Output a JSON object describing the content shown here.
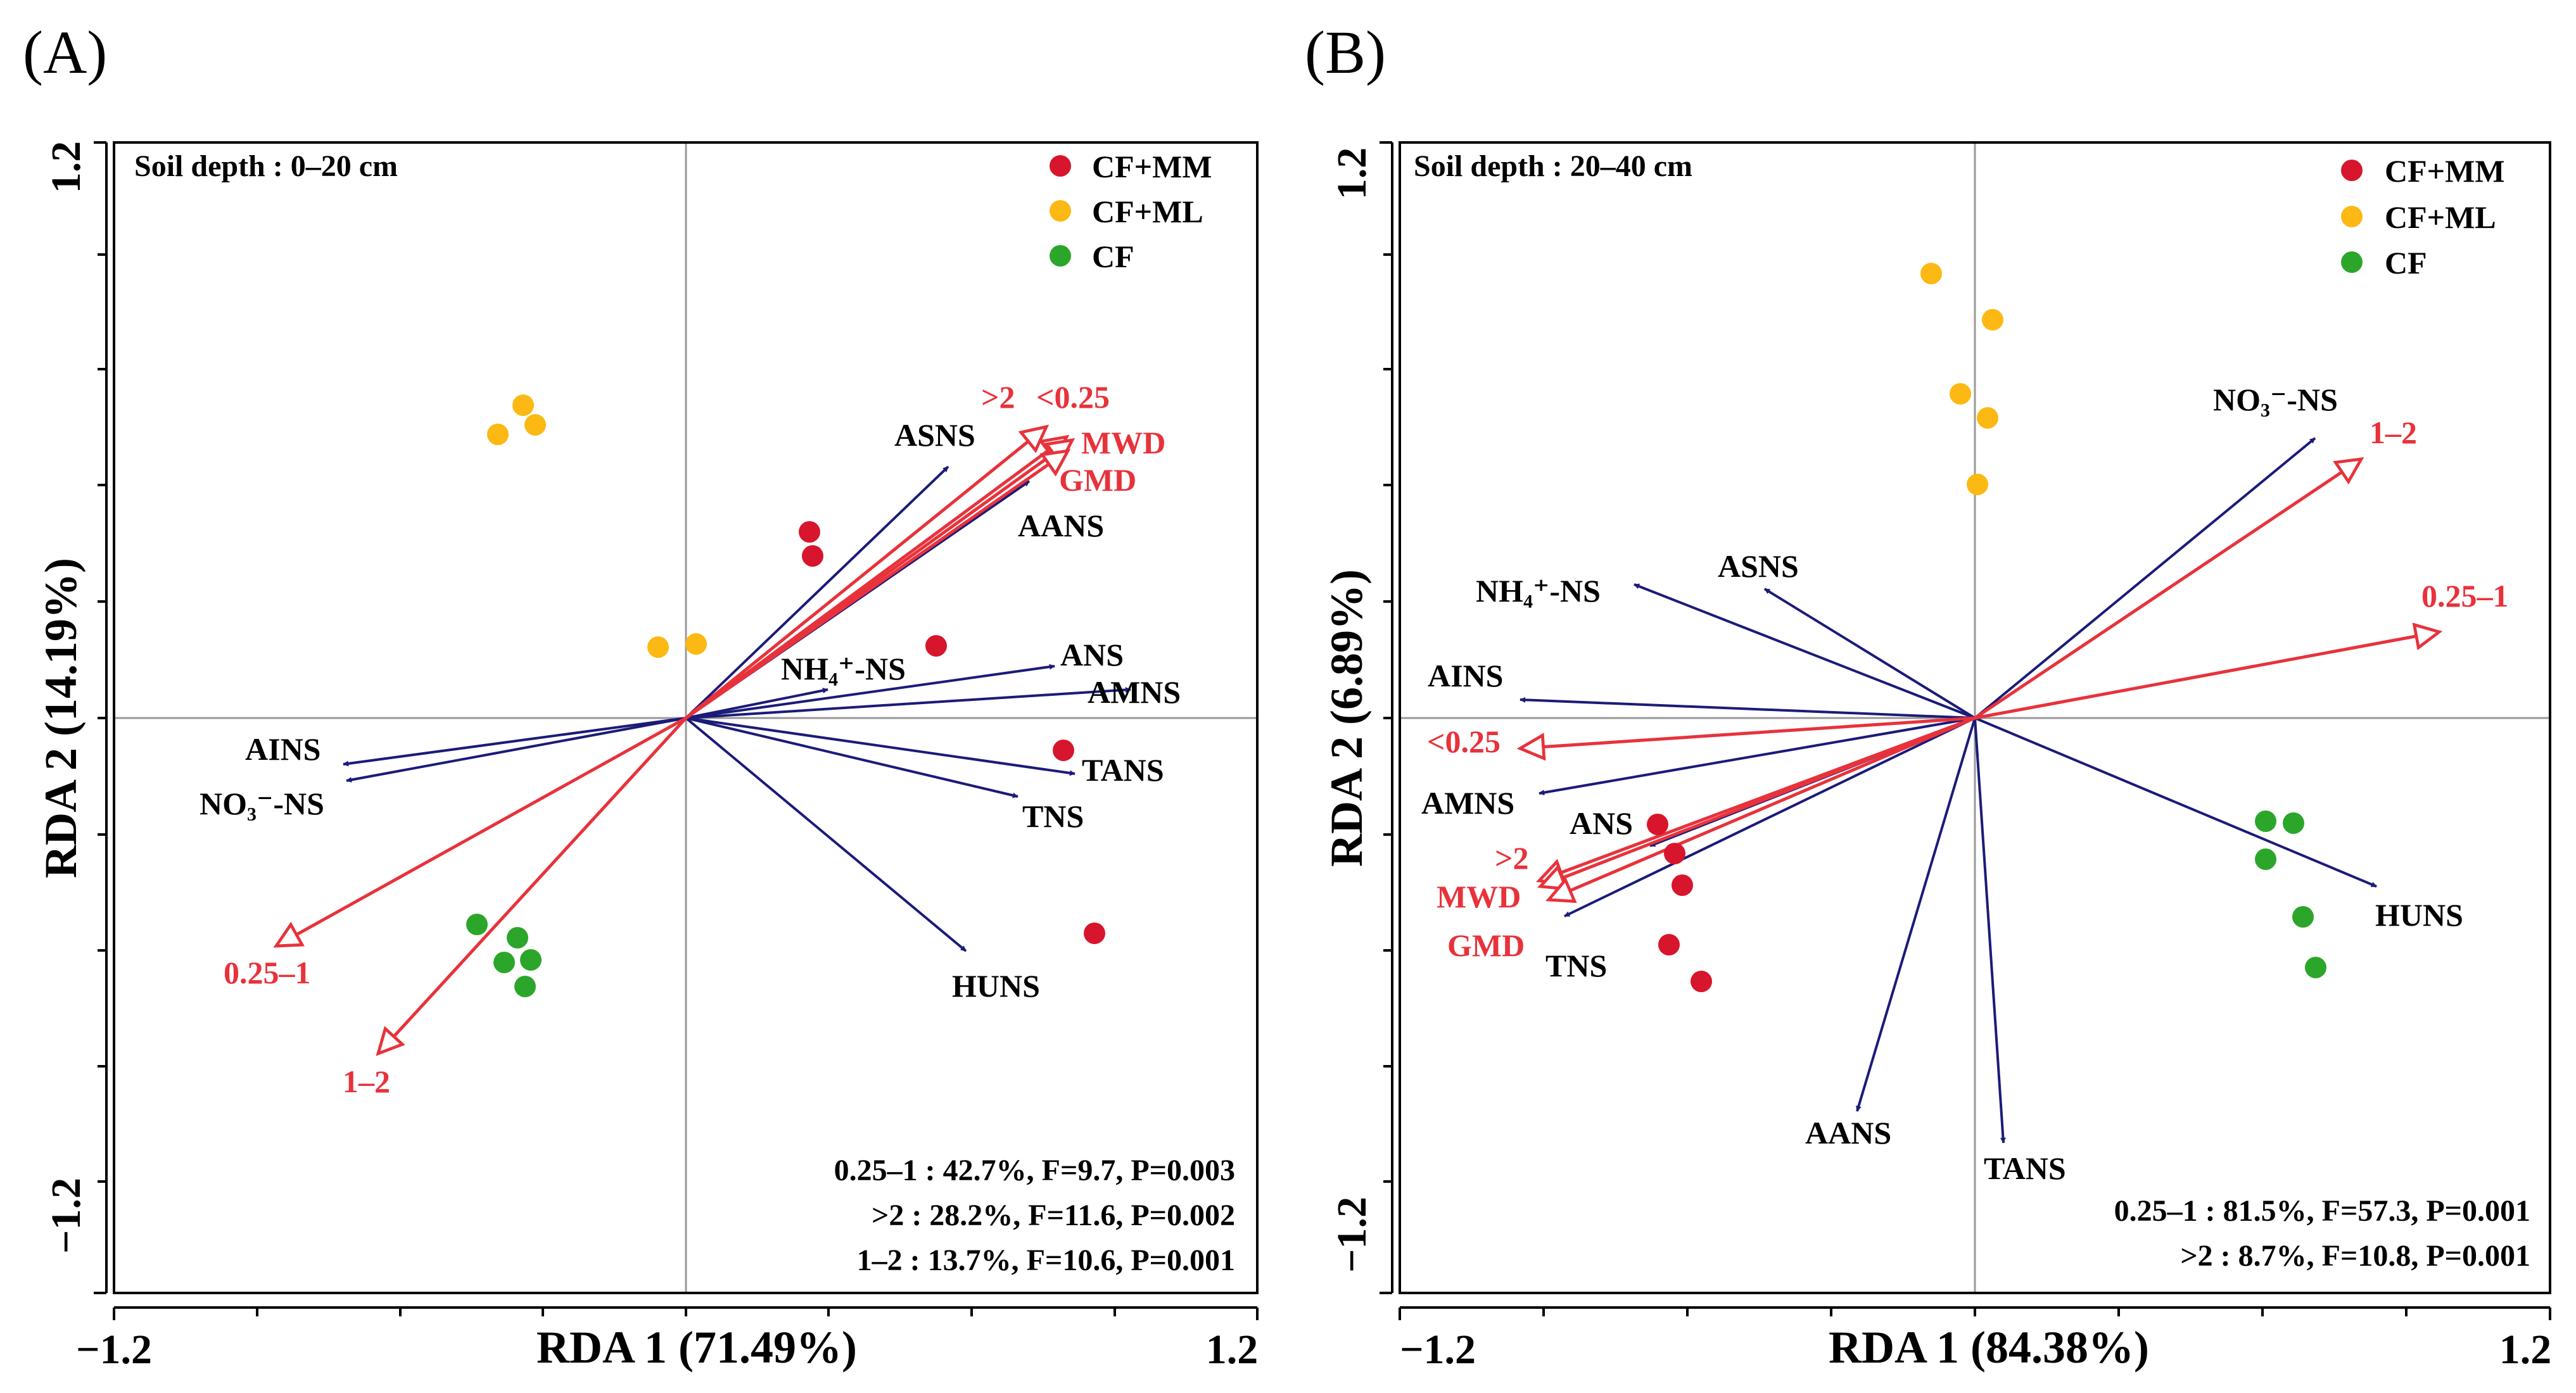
{
  "colors": {
    "CF+MM": "#d7152c",
    "CF+ML": "#fcb813",
    "CF": "#2ba62a",
    "env_arrow": "#1b1b7a",
    "aggregate_arrow": "#e8323b",
    "crosshair": "#999999"
  },
  "chart_data": [
    {
      "type": "scatter",
      "panel_label": "(A)",
      "title": "Soil depth : 0–20 cm",
      "xlabel": "RDA 1 (71.49%)",
      "ylabel": "RDA 2 (14.19%)",
      "xlim": [
        -1.2,
        1.2
      ],
      "ylim": [
        -1.2,
        1.2
      ],
      "x_ticks": [
        -1.2,
        1.2
      ],
      "y_ticks": [
        -1.2,
        1.2
      ],
      "legend": [
        "CF+MM",
        "CF+ML",
        "CF"
      ],
      "points": {
        "CF+MM": [
          [
            0.26,
            0.4
          ],
          [
            0.27,
            0.35
          ],
          [
            0.54,
            0.16
          ],
          [
            0.8,
            -0.07
          ],
          [
            0.86,
            -0.52
          ]
        ],
        "CF+ML": [
          [
            -0.35,
            0.67
          ],
          [
            -0.34,
            0.65
          ],
          [
            -0.4,
            0.61
          ],
          [
            -0.06,
            0.16
          ],
          [
            0.03,
            0.16
          ]
        ],
        "CF": [
          [
            -0.44,
            -0.45
          ],
          [
            -0.39,
            -0.53
          ],
          [
            -0.36,
            -0.5
          ],
          [
            -0.33,
            -0.52
          ],
          [
            -0.34,
            -0.58
          ]
        ]
      },
      "env_vectors": [
        {
          "label": "ASNS",
          "x": 0.57,
          "y": 0.55
        },
        {
          "label": "AANS",
          "x": 0.72,
          "y": 0.5
        },
        {
          "label": "NH₄⁺-NS",
          "x": 0.3,
          "y": 0.06
        },
        {
          "label": "ANS",
          "x": 0.78,
          "y": 0.11
        },
        {
          "label": "AMNS",
          "x": 0.93,
          "y": 0.06
        },
        {
          "label": "TANS",
          "x": 0.82,
          "y": -0.12
        },
        {
          "label": "TNS",
          "x": 0.7,
          "y": -0.17
        },
        {
          "label": "HUNS",
          "x": 0.59,
          "y": -0.52
        },
        {
          "label": "AINS",
          "x": -0.72,
          "y": -0.1
        },
        {
          "label": "NO₃⁻-NS",
          "x": -0.72,
          "y": -0.13
        }
      ],
      "aggregate_vectors": [
        {
          "label": ">2",
          "x": 0.77,
          "y": 0.63
        },
        {
          "label": "<0.25",
          "x": 0.81,
          "y": 0.62
        },
        {
          "label": "MWD",
          "x": 0.82,
          "y": 0.61
        },
        {
          "label": "GMD",
          "x": 0.81,
          "y": 0.58
        },
        {
          "label": "0.25–1",
          "x": -0.86,
          "y": -0.49
        },
        {
          "label": "1–2",
          "x": -0.65,
          "y": -0.72
        }
      ],
      "stats": [
        "0.25–1 : 42.7%, F=9.7, P=0.003",
        ">2 : 28.2%, F=11.6, P=0.002",
        "1–2 : 13.7%, F=10.6, P=0.001"
      ]
    },
    {
      "type": "scatter",
      "panel_label": "(B)",
      "title": "Soil depth : 20–40 cm",
      "xlabel": "RDA 1 (84.38%)",
      "ylabel": "RDA 2 (6.89%)",
      "xlim": [
        -1.2,
        1.2
      ],
      "ylim": [
        -1.2,
        1.2
      ],
      "x_ticks": [
        -1.2,
        1.2
      ],
      "y_ticks": [
        -1.2,
        1.2
      ],
      "legend": [
        "CF+MM",
        "CF+ML",
        "CF"
      ],
      "points": {
        "CF+MM": [
          [
            -0.66,
            -0.22
          ],
          [
            -0.62,
            -0.28
          ],
          [
            -0.61,
            -0.34
          ],
          [
            -0.64,
            -0.47
          ],
          [
            -0.57,
            -0.55
          ]
        ],
        "CF+ML": [
          [
            -0.09,
            0.94
          ],
          [
            0.04,
            0.84
          ],
          [
            -0.03,
            0.69
          ],
          [
            0.03,
            0.64
          ],
          [
            0.01,
            0.49
          ]
        ],
        "CF": [
          [
            0.61,
            -0.22
          ],
          [
            0.67,
            -0.22
          ],
          [
            0.61,
            -0.3
          ],
          [
            0.69,
            -0.42
          ],
          [
            0.72,
            -0.52
          ]
        ]
      },
      "env_vectors": [
        {
          "label": "NO₃⁻-NS",
          "x": 0.71,
          "y": 0.59
        },
        {
          "label": "ASNS",
          "x": -0.44,
          "y": 0.27
        },
        {
          "label": "NH₄⁺-NS",
          "x": -0.71,
          "y": 0.28
        },
        {
          "label": "AINS",
          "x": -0.95,
          "y": 0.04
        },
        {
          "label": "AMNS",
          "x": -0.91,
          "y": -0.16
        },
        {
          "label": "ANS",
          "x": -0.68,
          "y": -0.27
        },
        {
          "label": "TNS",
          "x": -0.86,
          "y": -0.42
        },
        {
          "label": "AANS",
          "x": -0.24,
          "y": -0.82
        },
        {
          "label": "TANS",
          "x": 0.06,
          "y": -0.89
        },
        {
          "label": "HUNS",
          "x": 0.84,
          "y": -0.35
        }
      ],
      "aggregate_vectors": [
        {
          "label": "1–2",
          "x": 0.81,
          "y": 0.55
        },
        {
          "label": "0.25–1",
          "x": 0.97,
          "y": 0.18
        },
        {
          "label": "<0.25",
          "x": -0.95,
          "y": -0.06
        },
        {
          "label": ">2",
          "x": -0.91,
          "y": -0.34
        },
        {
          "label": "MWD",
          "x": -0.91,
          "y": -0.36
        },
        {
          "label": "GMD",
          "x": -0.89,
          "y": -0.38
        }
      ],
      "stats": [
        "0.25–1 : 81.5%, F=57.3, P=0.001",
        ">2 : 8.7%, F=10.8, P=0.001"
      ]
    }
  ]
}
